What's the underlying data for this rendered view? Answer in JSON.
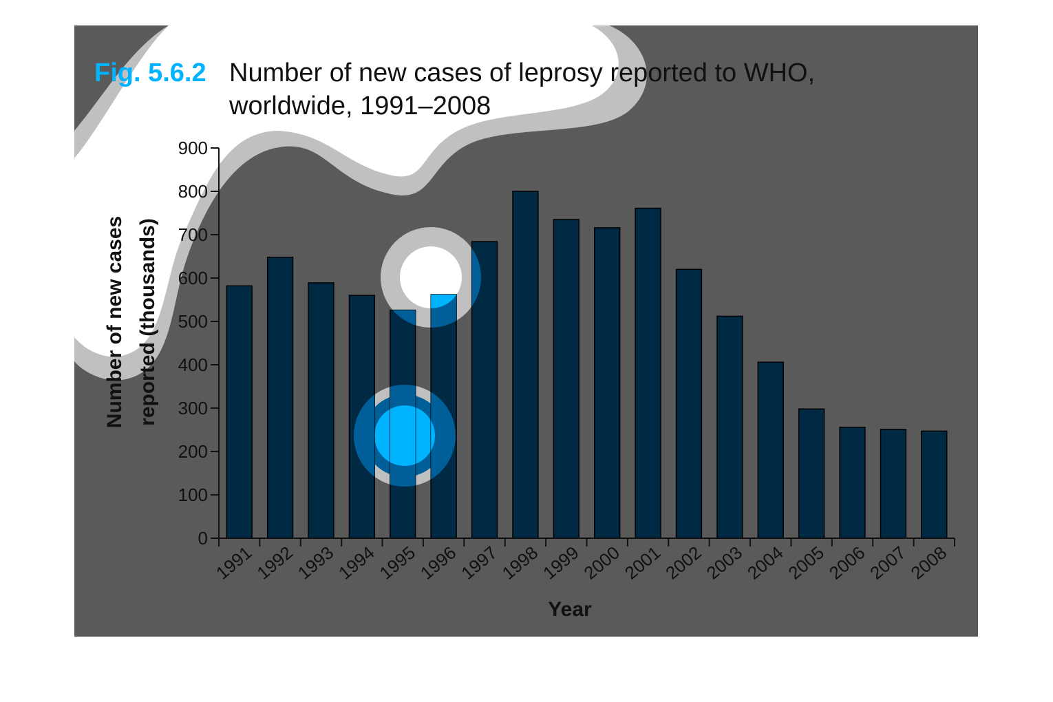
{
  "figure": {
    "number": "Fig. 5.6.2",
    "title_line1": "Number of new cases of leprosy reported to WHO,",
    "title_line2": "worldwide, 1991–2008"
  },
  "colors": {
    "panel": "#5a5a5a",
    "bar": "#002a44",
    "figure_number": "#00b3ff",
    "title_text": "#111111",
    "axis": "#111111",
    "overlay_light": "#c0c0c0",
    "overlay_blue": "#005f99"
  },
  "chart_data": {
    "type": "bar",
    "title": "Number of new cases of leprosy reported to WHO, worldwide, 1991–2008",
    "xlabel": "Year",
    "ylabel_line1": "Number of new cases",
    "ylabel_line2": "reported (thousands)",
    "categories": [
      "1991",
      "1992",
      "1993",
      "1994",
      "1995",
      "1996",
      "1997",
      "1998",
      "1999",
      "2000",
      "2001",
      "2002",
      "2003",
      "2004",
      "2005",
      "2006",
      "2007",
      "2008"
    ],
    "values": [
      582,
      648,
      589,
      560,
      526,
      562,
      684,
      800,
      735,
      716,
      761,
      620,
      512,
      406,
      298,
      256,
      251,
      247
    ],
    "ylim": [
      0,
      900
    ],
    "yticks": [
      "0",
      "100",
      "200",
      "300",
      "400",
      "500",
      "600",
      "700",
      "800",
      "900"
    ],
    "grid": false,
    "legend": "none"
  }
}
